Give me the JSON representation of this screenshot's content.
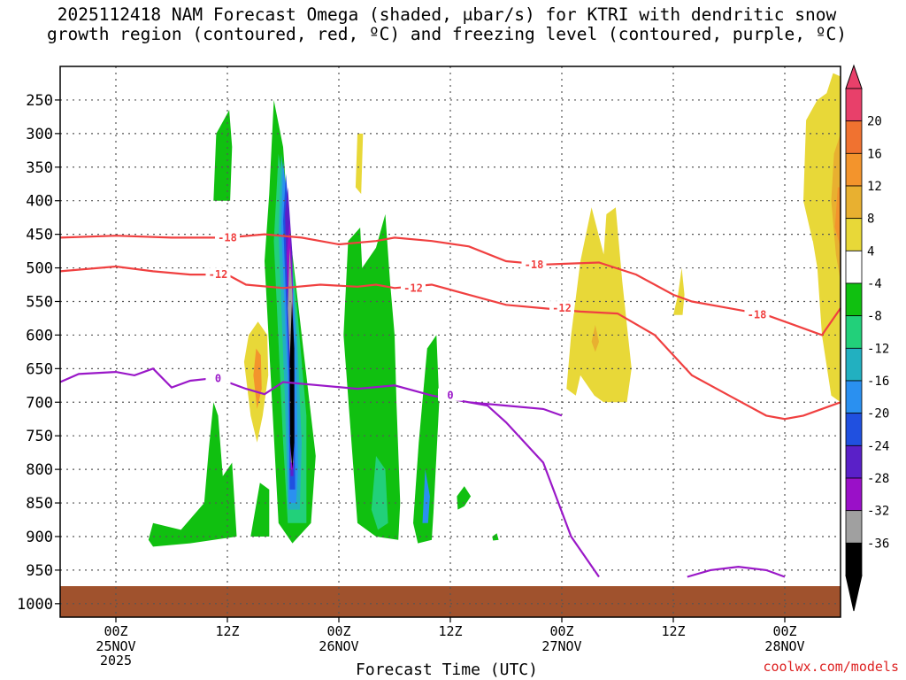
{
  "title_line1": "2025112418 NAM Forecast Omega (shaded, μbar/s) for KTRI with dendritic snow",
  "title_line2": "growth region (contoured, red, ºC) and freezing level (contoured, purple, ºC)",
  "credit": "coolwx.com/models",
  "chart_data": {
    "type": "heatmap",
    "xlabel": "Forecast Time (UTC)",
    "ylabel": "",
    "x_ticks": [
      {
        "label": "00Z",
        "sub": [
          "25NOV",
          "2025"
        ],
        "hour": 6
      },
      {
        "label": "12Z",
        "sub": [],
        "hour": 18
      },
      {
        "label": "00Z",
        "sub": [
          "26NOV"
        ],
        "hour": 30
      },
      {
        "label": "12Z",
        "sub": [],
        "hour": 42
      },
      {
        "label": "00Z",
        "sub": [
          "27NOV"
        ],
        "hour": 54
      },
      {
        "label": "12Z",
        "sub": [],
        "hour": 66
      },
      {
        "label": "00Z",
        "sub": [
          "28NOV"
        ],
        "hour": 78
      }
    ],
    "xlim_hours": [
      0,
      84
    ],
    "y_ticks_hpa": [
      250,
      300,
      350,
      400,
      450,
      500,
      550,
      600,
      650,
      700,
      750,
      800,
      850,
      900,
      950,
      1000
    ],
    "ylim_hpa": [
      200,
      1020
    ],
    "colorbar": {
      "labels": [
        "20",
        "16",
        "12",
        "8",
        "4",
        "-4",
        "-8",
        "-12",
        "-16",
        "-20",
        "-24",
        "-28",
        "-32",
        "-36"
      ],
      "colors": [
        "#e8406a",
        "#f07230",
        "#f3942c",
        "#e8b030",
        "#e8d838",
        "#ffffff",
        "#10c010",
        "#22d07a",
        "#22b0c0",
        "#2a90f0",
        "#2050e0",
        "#5a20c8",
        "#9a10c8",
        "#a0a0a0",
        "#000000"
      ]
    },
    "contours": [
      {
        "label": "-18",
        "color": "#f04040",
        "points": [
          [
            0,
            455
          ],
          [
            6,
            452
          ],
          [
            12,
            455
          ],
          [
            16,
            455
          ],
          [
            18,
            455
          ],
          [
            22,
            450
          ],
          [
            26,
            455
          ],
          [
            30,
            465
          ],
          [
            34,
            460
          ],
          [
            36,
            455
          ],
          [
            40,
            460
          ],
          [
            44,
            468
          ],
          [
            48,
            490
          ],
          [
            52,
            495
          ],
          [
            58,
            492
          ],
          [
            62,
            510
          ],
          [
            66,
            540
          ],
          [
            68,
            550
          ],
          [
            72,
            560
          ],
          [
            76,
            570
          ],
          [
            80,
            590
          ],
          [
            82,
            600
          ],
          [
            84,
            560
          ]
        ],
        "label_hours": [
          18,
          51,
          75
        ]
      },
      {
        "label": "-12",
        "color": "#f04040",
        "points": [
          [
            0,
            505
          ],
          [
            6,
            498
          ],
          [
            10,
            505
          ],
          [
            14,
            510
          ],
          [
            18,
            510
          ],
          [
            20,
            525
          ],
          [
            24,
            530
          ],
          [
            28,
            525
          ],
          [
            32,
            528
          ],
          [
            34,
            525
          ],
          [
            36,
            530
          ],
          [
            40,
            525
          ],
          [
            44,
            540
          ],
          [
            48,
            555
          ],
          [
            52,
            560
          ],
          [
            56,
            565
          ],
          [
            60,
            568
          ],
          [
            64,
            600
          ],
          [
            68,
            660
          ],
          [
            72,
            690
          ],
          [
            76,
            720
          ],
          [
            78,
            725
          ],
          [
            80,
            720
          ],
          [
            84,
            700
          ]
        ],
        "label_hours": [
          17,
          38,
          54
        ]
      },
      {
        "label": "0",
        "color": "#9a18c8",
        "points": [
          [
            0,
            670
          ],
          [
            2,
            658
          ],
          [
            6,
            655
          ],
          [
            8,
            660
          ],
          [
            10,
            650
          ],
          [
            12,
            678
          ],
          [
            14,
            668
          ],
          [
            16,
            665
          ],
          [
            18,
            670
          ],
          [
            20,
            680
          ],
          [
            22,
            688
          ],
          [
            24,
            670
          ],
          [
            28,
            675
          ],
          [
            32,
            680
          ],
          [
            36,
            675
          ],
          [
            40,
            690
          ],
          [
            44,
            700
          ],
          [
            48,
            705
          ],
          [
            52,
            710
          ],
          [
            54,
            720
          ]
        ],
        "label_hours": [
          17,
          42
        ]
      }
    ]
  }
}
